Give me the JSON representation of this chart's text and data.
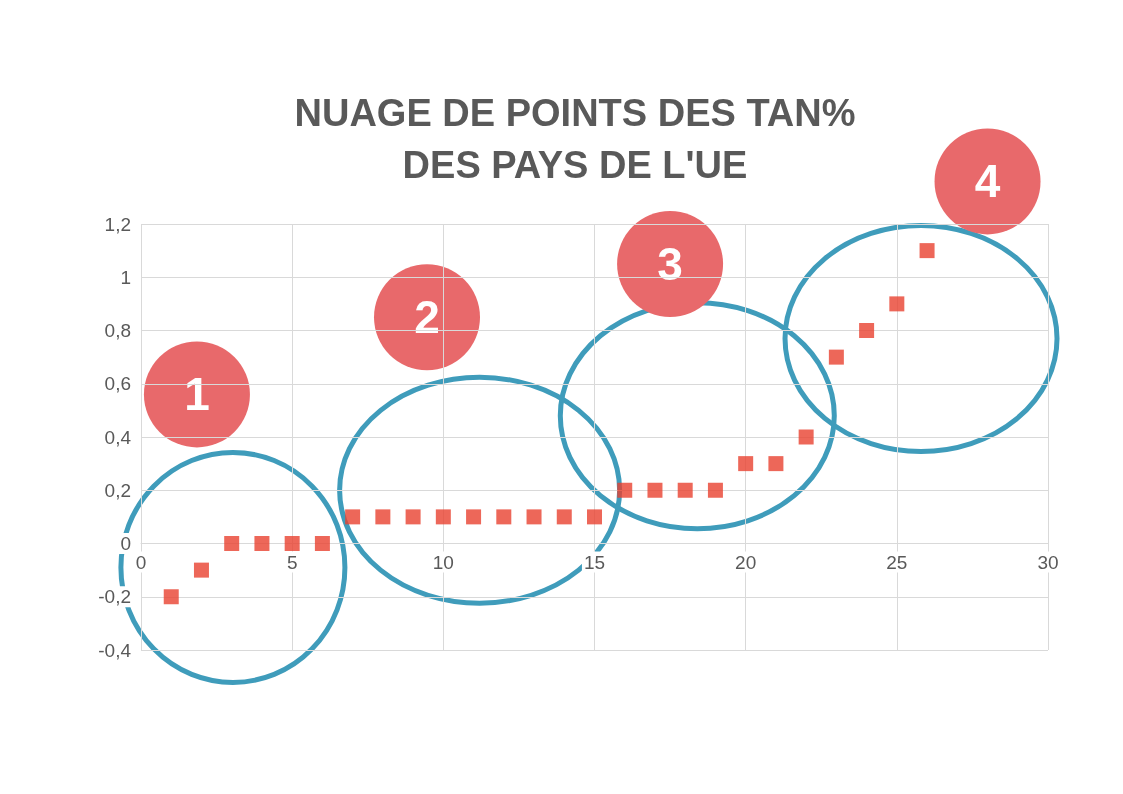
{
  "chart_data": {
    "type": "scatter",
    "title": "NUAGE DE POINTS DES TAN%\nDES PAYS DE L'UE",
    "x": [
      1,
      2,
      3,
      4,
      5,
      6,
      7,
      8,
      9,
      10,
      11,
      12,
      13,
      14,
      15,
      16,
      17,
      18,
      19,
      20,
      21,
      22,
      23,
      24,
      25,
      26
    ],
    "values": [
      -0.2,
      -0.1,
      0,
      0,
      0,
      0,
      0.1,
      0.1,
      0.1,
      0.1,
      0.1,
      0.1,
      0.1,
      0.1,
      0.1,
      0.2,
      0.2,
      0.2,
      0.2,
      0.3,
      0.3,
      0.4,
      0.7,
      0.8,
      0.9,
      1.1
    ],
    "color": "#e8412f",
    "marker": "square",
    "xlim": [
      0,
      30
    ],
    "xticks": [
      0,
      5,
      10,
      15,
      20,
      25,
      30
    ],
    "ylim": [
      -0.4,
      1.2
    ],
    "yticks": [
      {
        "value": -0.4,
        "label": "-0,4"
      },
      {
        "value": -0.2,
        "label": "-0,2"
      },
      0,
      {
        "value": 0.2,
        "label": "0,2"
      },
      {
        "value": 0.4,
        "label": "0,4"
      },
      {
        "value": 0.6,
        "label": "0,6"
      },
      {
        "value": 0.8,
        "label": "0,8"
      },
      1,
      {
        "value": 1.2,
        "label": "1,2"
      }
    ],
    "grid": true,
    "annotations": [
      "1",
      "2",
      "3",
      "4"
    ]
  }
}
